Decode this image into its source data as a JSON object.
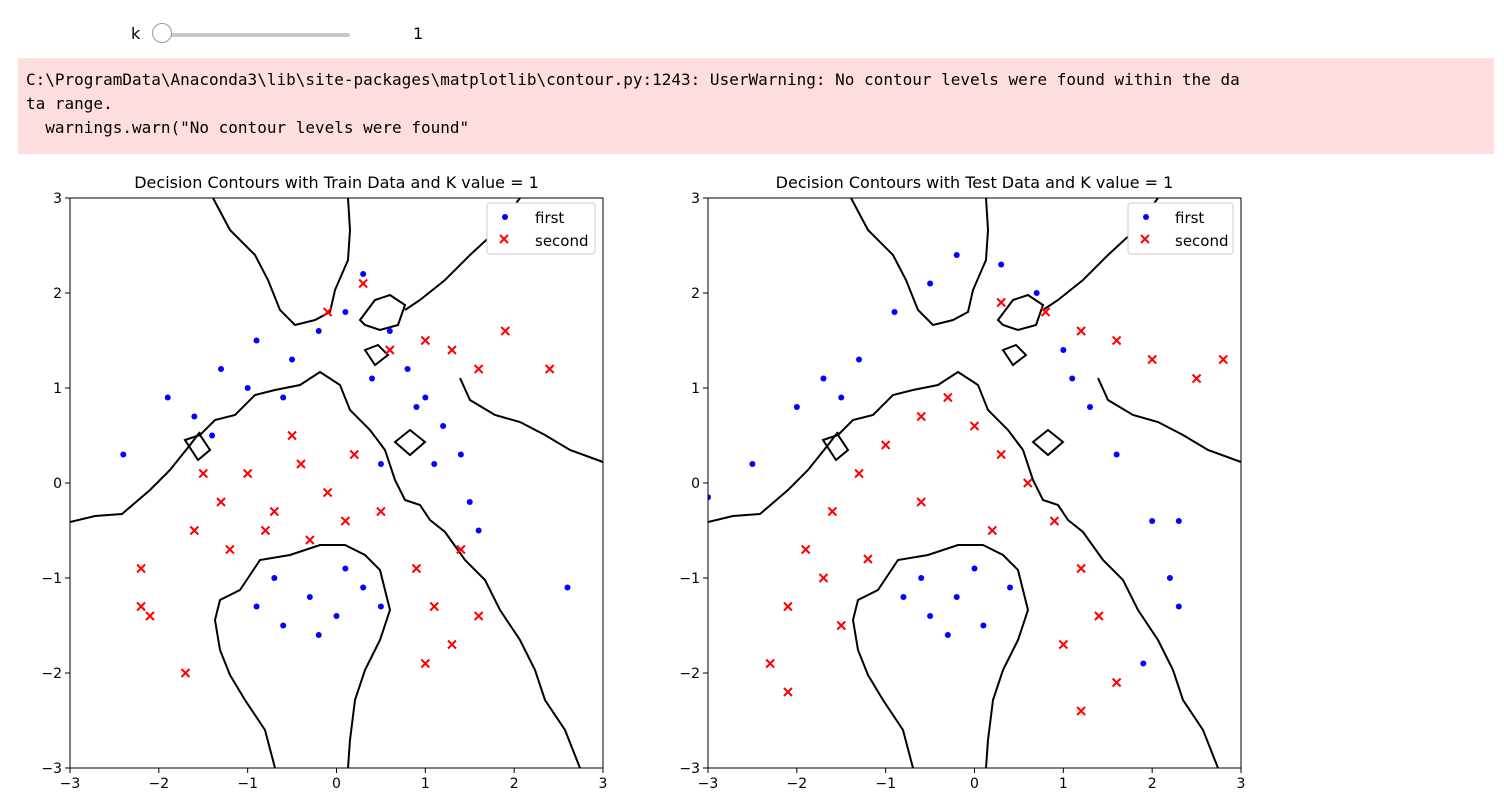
{
  "widget": {
    "label": "k",
    "value": "1",
    "slider_fraction": 0.0
  },
  "stderr": {
    "lines": [
      "C:\\ProgramData\\Anaconda3\\lib\\site-packages\\matplotlib\\contour.py:1243: UserWarning: No contour levels were found within the da",
      "ta range.",
      "  warnings.warn(\"No contour levels were found\""
    ]
  },
  "colors": {
    "first": "#0000ff",
    "second": "#ff0000",
    "contour": "#000000",
    "stderr_bg": "#fddddd"
  },
  "chart_data": [
    {
      "type": "scatter",
      "title": "Decision Contours with Train Data and K value = 1",
      "xlim": [
        -3,
        3
      ],
      "ylim": [
        -3,
        3
      ],
      "xticks": [
        "−3",
        "−2",
        "−1",
        "0",
        "1",
        "2",
        "3"
      ],
      "yticks": [
        "−3",
        "−2",
        "−1",
        "0",
        "1",
        "2",
        "3"
      ],
      "legend": {
        "placement": "top-right",
        "entries": [
          "first",
          "second"
        ]
      },
      "series": [
        {
          "name": "first",
          "marker": "dot",
          "points": [
            [
              -2.4,
              0.3
            ],
            [
              -1.9,
              0.9
            ],
            [
              -1.3,
              1.2
            ],
            [
              -0.9,
              1.5
            ],
            [
              -0.5,
              1.3
            ],
            [
              -0.2,
              1.6
            ],
            [
              0.1,
              1.8
            ],
            [
              0.3,
              2.2
            ],
            [
              0.6,
              1.6
            ],
            [
              0.8,
              1.2
            ],
            [
              1.0,
              0.9
            ],
            [
              1.2,
              0.6
            ],
            [
              1.4,
              0.3
            ],
            [
              1.5,
              -0.2
            ],
            [
              1.6,
              -0.5
            ],
            [
              -1.6,
              0.7
            ],
            [
              -1.0,
              1.0
            ],
            [
              -0.6,
              0.9
            ],
            [
              0.4,
              1.1
            ],
            [
              0.9,
              0.8
            ],
            [
              1.1,
              0.2
            ],
            [
              -0.9,
              -1.3
            ],
            [
              -0.6,
              -1.5
            ],
            [
              -0.3,
              -1.2
            ],
            [
              0.0,
              -1.4
            ],
            [
              0.3,
              -1.1
            ],
            [
              0.5,
              -1.3
            ],
            [
              -0.2,
              -1.6
            ],
            [
              0.1,
              -0.9
            ],
            [
              -0.7,
              -1.0
            ],
            [
              2.6,
              -1.1
            ],
            [
              -1.4,
              0.5
            ],
            [
              0.5,
              0.2
            ]
          ]
        },
        {
          "name": "second",
          "marker": "x",
          "points": [
            [
              -2.2,
              -0.9
            ],
            [
              -2.1,
              -1.4
            ],
            [
              -1.7,
              -2.0
            ],
            [
              -1.6,
              -0.5
            ],
            [
              -1.3,
              -0.2
            ],
            [
              -1.0,
              0.1
            ],
            [
              -0.7,
              -0.3
            ],
            [
              -0.4,
              0.2
            ],
            [
              -0.1,
              -0.1
            ],
            [
              0.2,
              0.3
            ],
            [
              0.5,
              -0.3
            ],
            [
              -1.2,
              -0.7
            ],
            [
              -0.8,
              -0.5
            ],
            [
              -0.3,
              -0.6
            ],
            [
              0.1,
              -0.4
            ],
            [
              0.9,
              -0.9
            ],
            [
              1.1,
              -1.3
            ],
            [
              1.3,
              -1.7
            ],
            [
              1.4,
              -0.7
            ],
            [
              1.6,
              -1.4
            ],
            [
              0.6,
              1.4
            ],
            [
              1.0,
              1.5
            ],
            [
              1.3,
              1.4
            ],
            [
              1.6,
              1.2
            ],
            [
              1.9,
              1.6
            ],
            [
              2.4,
              1.2
            ],
            [
              0.3,
              2.1
            ],
            [
              -0.1,
              1.8
            ],
            [
              -0.5,
              0.5
            ],
            [
              -1.5,
              0.1
            ],
            [
              -2.2,
              -1.3
            ],
            [
              1.0,
              -1.9
            ]
          ]
        }
      ]
    },
    {
      "type": "scatter",
      "title": "Decision Contours with Test Data and K value = 1",
      "xlim": [
        -3,
        3
      ],
      "ylim": [
        -3,
        3
      ],
      "xticks": [
        "−3",
        "−2",
        "−1",
        "0",
        "1",
        "2",
        "3"
      ],
      "yticks": [
        "−3",
        "−2",
        "−1",
        "0",
        "1",
        "2",
        "3"
      ],
      "legend": {
        "placement": "top-right",
        "entries": [
          "first",
          "second"
        ]
      },
      "series": [
        {
          "name": "first",
          "marker": "dot",
          "points": [
            [
              -3.0,
              -0.15
            ],
            [
              -2.5,
              0.2
            ],
            [
              -2.0,
              0.8
            ],
            [
              -1.7,
              1.1
            ],
            [
              -1.3,
              1.3
            ],
            [
              -0.9,
              1.8
            ],
            [
              -0.5,
              2.1
            ],
            [
              -0.2,
              2.4
            ],
            [
              0.3,
              2.3
            ],
            [
              0.7,
              2.0
            ],
            [
              1.0,
              1.4
            ],
            [
              1.3,
              0.8
            ],
            [
              1.6,
              0.3
            ],
            [
              2.0,
              -0.4
            ],
            [
              2.2,
              -1.0
            ],
            [
              2.3,
              -1.3
            ],
            [
              -0.8,
              -1.2
            ],
            [
              -0.5,
              -1.4
            ],
            [
              -0.2,
              -1.2
            ],
            [
              0.1,
              -1.5
            ],
            [
              0.4,
              -1.1
            ],
            [
              -0.3,
              -1.6
            ],
            [
              0.0,
              -0.9
            ],
            [
              -0.6,
              -1.0
            ],
            [
              1.9,
              -1.9
            ],
            [
              2.3,
              -0.4
            ],
            [
              -1.5,
              0.9
            ],
            [
              1.1,
              1.1
            ]
          ]
        },
        {
          "name": "second",
          "marker": "x",
          "points": [
            [
              -2.3,
              -1.9
            ],
            [
              -2.1,
              -1.3
            ],
            [
              -1.9,
              -0.7
            ],
            [
              -1.6,
              -0.3
            ],
            [
              -1.3,
              0.1
            ],
            [
              -1.0,
              0.4
            ],
            [
              -0.6,
              0.7
            ],
            [
              -0.3,
              0.9
            ],
            [
              0.0,
              0.6
            ],
            [
              0.3,
              0.3
            ],
            [
              0.6,
              0.0
            ],
            [
              0.9,
              -0.4
            ],
            [
              1.2,
              -0.9
            ],
            [
              1.4,
              -1.4
            ],
            [
              1.6,
              -2.1
            ],
            [
              1.2,
              -2.4
            ],
            [
              -2.1,
              -2.2
            ],
            [
              -1.5,
              -1.5
            ],
            [
              -1.2,
              -0.8
            ],
            [
              0.8,
              1.8
            ],
            [
              1.2,
              1.6
            ],
            [
              1.6,
              1.5
            ],
            [
              2.0,
              1.3
            ],
            [
              2.5,
              1.1
            ],
            [
              2.8,
              1.3
            ],
            [
              0.3,
              1.9
            ],
            [
              -0.6,
              -0.2
            ],
            [
              0.2,
              -0.5
            ],
            [
              1.0,
              -1.7
            ],
            [
              -1.7,
              -1.0
            ]
          ]
        }
      ]
    }
  ]
}
